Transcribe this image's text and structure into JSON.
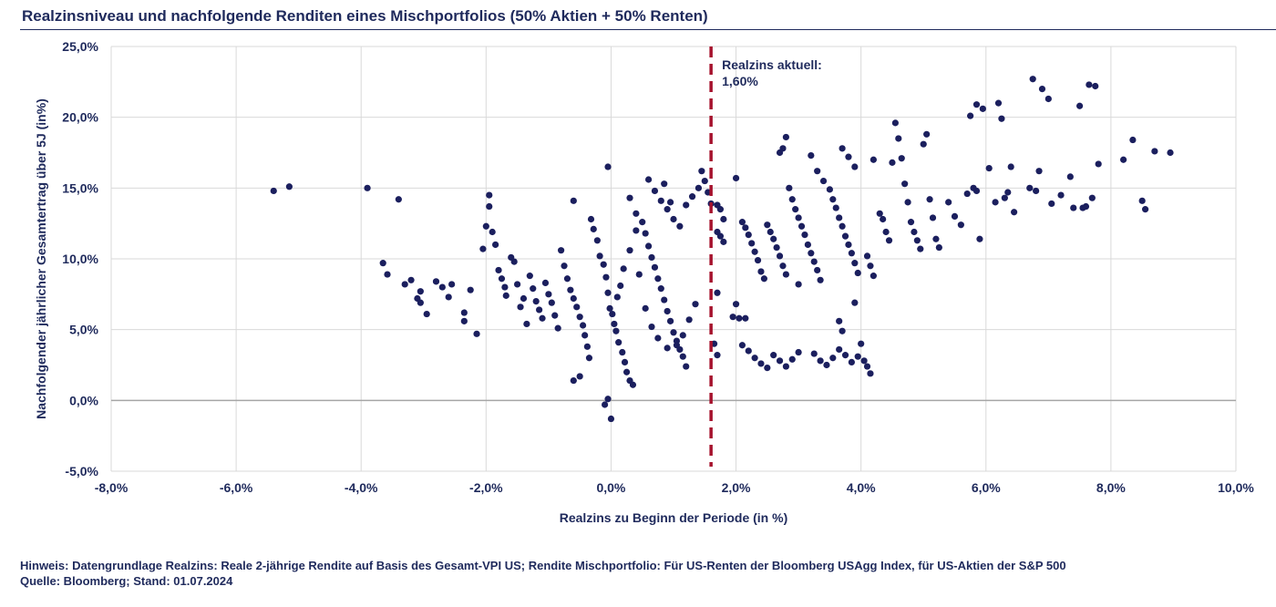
{
  "title": "Realzinsniveau und nachfolgende Renditen eines Mischportfolios (50% Aktien + 50% Renten)",
  "footer": {
    "note": "Hinweis: Datengrundlage Realzins: Reale 2-jährige Rendite auf Basis des Gesamt-VPI US; Rendite Mischportfolio: Für US-Renten der Bloomberg USAgg Index, für US-Aktien der S&P 500",
    "source": "Quelle: Bloomberg; Stand: 01.07.2024"
  },
  "colors": {
    "points": "#1b1f5e",
    "axis_text": "#1f2a5c",
    "grid": "#d9d9d9",
    "marker_line": "#a6122d",
    "zero_line": "#a6a6a6"
  },
  "chart_data": {
    "type": "scatter",
    "title": "Realzinsniveau und nachfolgende Renditen eines Mischportfolios (50% Aktien + 50% Renten)",
    "xlabel": "Realzins zu Beginn der Periode (in %)",
    "ylabel": "Nachfolgender jährlicher Gesamtertrag über 5J (in%)",
    "xlim": [
      -8,
      10
    ],
    "ylim": [
      -5,
      25
    ],
    "x_ticks": [
      -8,
      -6,
      -4,
      -2,
      0,
      2,
      4,
      6,
      8,
      10
    ],
    "x_tick_labels": [
      "-8,0%",
      "-6,0%",
      "-4,0%",
      "-2,0%",
      "0,0%",
      "2,0%",
      "4,0%",
      "6,0%",
      "8,0%",
      "10,0%"
    ],
    "y_ticks": [
      -5,
      0,
      5,
      10,
      15,
      20,
      25
    ],
    "y_tick_labels": [
      "-5,0%",
      "0,0%",
      "5,0%",
      "10,0%",
      "15,0%",
      "20,0%",
      "25,0%"
    ],
    "grid": true,
    "annotation": {
      "x": 1.6,
      "label_line1": "Realzins aktuell:",
      "label_line2": "1,60%"
    },
    "points": [
      [
        -5.4,
        14.8
      ],
      [
        -5.15,
        15.1
      ],
      [
        -3.9,
        15.0
      ],
      [
        -3.4,
        14.2
      ],
      [
        -3.65,
        9.7
      ],
      [
        -3.58,
        8.9
      ],
      [
        -3.3,
        8.2
      ],
      [
        -3.2,
        8.5
      ],
      [
        -3.05,
        7.7
      ],
      [
        -3.1,
        7.2
      ],
      [
        -3.05,
        6.9
      ],
      [
        -2.95,
        6.1
      ],
      [
        -2.8,
        8.4
      ],
      [
        -2.7,
        8.0
      ],
      [
        -2.6,
        7.3
      ],
      [
        -2.55,
        8.2
      ],
      [
        -2.35,
        6.2
      ],
      [
        -2.35,
        5.6
      ],
      [
        -2.25,
        7.8
      ],
      [
        -2.15,
        4.7
      ],
      [
        -2.05,
        10.7
      ],
      [
        -2.0,
        12.3
      ],
      [
        -1.95,
        14.5
      ],
      [
        -1.95,
        13.7
      ],
      [
        -1.9,
        11.9
      ],
      [
        -1.85,
        11.0
      ],
      [
        -1.8,
        9.2
      ],
      [
        -1.75,
        8.6
      ],
      [
        -1.7,
        8.0
      ],
      [
        -1.68,
        7.4
      ],
      [
        -1.6,
        10.1
      ],
      [
        -1.55,
        9.8
      ],
      [
        -1.5,
        8.2
      ],
      [
        -1.45,
        6.6
      ],
      [
        -1.4,
        7.2
      ],
      [
        -1.35,
        5.4
      ],
      [
        -1.3,
        8.8
      ],
      [
        -1.25,
        7.9
      ],
      [
        -1.2,
        7.0
      ],
      [
        -1.15,
        6.4
      ],
      [
        -1.1,
        5.8
      ],
      [
        -1.05,
        8.3
      ],
      [
        -1.0,
        7.5
      ],
      [
        -0.95,
        6.9
      ],
      [
        -0.9,
        6.0
      ],
      [
        -0.85,
        5.1
      ],
      [
        -0.8,
        10.6
      ],
      [
        -0.75,
        9.5
      ],
      [
        -0.7,
        8.6
      ],
      [
        -0.65,
        7.8
      ],
      [
        -0.6,
        7.2
      ],
      [
        -0.55,
        6.6
      ],
      [
        -0.5,
        5.9
      ],
      [
        -0.45,
        5.3
      ],
      [
        -0.42,
        4.6
      ],
      [
        -0.38,
        3.8
      ],
      [
        -0.35,
        3.0
      ],
      [
        -0.32,
        12.8
      ],
      [
        -0.28,
        12.1
      ],
      [
        -0.22,
        11.3
      ],
      [
        -0.18,
        10.2
      ],
      [
        -0.12,
        9.6
      ],
      [
        -0.08,
        8.7
      ],
      [
        -0.05,
        7.6
      ],
      [
        -0.02,
        6.5
      ],
      [
        0.02,
        6.1
      ],
      [
        0.05,
        5.4
      ],
      [
        0.08,
        4.9
      ],
      [
        0.12,
        4.1
      ],
      [
        0.18,
        3.4
      ],
      [
        0.22,
        2.7
      ],
      [
        0.25,
        2.0
      ],
      [
        0.3,
        1.4
      ],
      [
        0.35,
        1.1
      ],
      [
        -0.1,
        -0.3
      ],
      [
        -0.05,
        0.1
      ],
      [
        0.0,
        -1.3
      ],
      [
        -0.6,
        1.4
      ],
      [
        -0.5,
        1.7
      ],
      [
        -0.6,
        14.1
      ],
      [
        -0.05,
        16.5
      ],
      [
        0.3,
        14.3
      ],
      [
        0.4,
        13.2
      ],
      [
        0.5,
        12.6
      ],
      [
        0.55,
        11.8
      ],
      [
        0.6,
        10.9
      ],
      [
        0.65,
        10.1
      ],
      [
        0.7,
        9.4
      ],
      [
        0.75,
        8.6
      ],
      [
        0.8,
        7.9
      ],
      [
        0.85,
        7.1
      ],
      [
        0.9,
        6.3
      ],
      [
        0.95,
        5.6
      ],
      [
        1.0,
        4.8
      ],
      [
        1.05,
        4.2
      ],
      [
        1.1,
        3.6
      ],
      [
        1.15,
        3.1
      ],
      [
        1.2,
        2.4
      ],
      [
        0.7,
        14.8
      ],
      [
        0.8,
        14.1
      ],
      [
        0.9,
        13.5
      ],
      [
        1.0,
        12.8
      ],
      [
        1.1,
        12.3
      ],
      [
        1.2,
        13.8
      ],
      [
        1.3,
        14.4
      ],
      [
        1.4,
        15.0
      ],
      [
        1.45,
        16.2
      ],
      [
        1.5,
        15.5
      ],
      [
        1.55,
        14.7
      ],
      [
        1.6,
        13.9
      ],
      [
        1.35,
        6.8
      ],
      [
        1.25,
        5.7
      ],
      [
        1.15,
        4.6
      ],
      [
        1.05,
        3.9
      ],
      [
        0.85,
        15.3
      ],
      [
        0.95,
        14.0
      ],
      [
        0.6,
        15.6
      ],
      [
        0.4,
        12.0
      ],
      [
        0.3,
        10.6
      ],
      [
        0.2,
        9.3
      ],
      [
        0.15,
        8.1
      ],
      [
        0.1,
        7.3
      ],
      [
        0.45,
        8.9
      ],
      [
        0.55,
        6.5
      ],
      [
        0.65,
        5.2
      ],
      [
        0.75,
        4.4
      ],
      [
        0.9,
        3.7
      ],
      [
        1.7,
        13.8
      ],
      [
        1.75,
        13.5
      ],
      [
        1.8,
        12.8
      ],
      [
        1.7,
        11.9
      ],
      [
        1.75,
        11.6
      ],
      [
        1.8,
        11.2
      ],
      [
        1.65,
        4.0
      ],
      [
        1.7,
        3.2
      ],
      [
        1.7,
        7.6
      ],
      [
        1.95,
        5.9
      ],
      [
        2.0,
        6.8
      ],
      [
        2.05,
        5.8
      ],
      [
        2.15,
        5.8
      ],
      [
        2.0,
        15.7
      ],
      [
        2.1,
        12.6
      ],
      [
        2.15,
        12.2
      ],
      [
        2.2,
        11.7
      ],
      [
        2.25,
        11.1
      ],
      [
        2.3,
        10.5
      ],
      [
        2.35,
        9.9
      ],
      [
        2.4,
        9.1
      ],
      [
        2.45,
        8.6
      ],
      [
        2.5,
        12.4
      ],
      [
        2.55,
        11.9
      ],
      [
        2.6,
        11.4
      ],
      [
        2.65,
        10.8
      ],
      [
        2.7,
        10.2
      ],
      [
        2.75,
        9.5
      ],
      [
        2.8,
        8.9
      ],
      [
        2.1,
        3.9
      ],
      [
        2.2,
        3.5
      ],
      [
        2.3,
        3.0
      ],
      [
        2.4,
        2.6
      ],
      [
        2.5,
        2.3
      ],
      [
        2.6,
        3.2
      ],
      [
        2.7,
        2.8
      ],
      [
        2.8,
        2.4
      ],
      [
        2.9,
        2.9
      ],
      [
        3.0,
        3.4
      ],
      [
        2.7,
        17.5
      ],
      [
        2.75,
        17.8
      ],
      [
        2.8,
        18.6
      ],
      [
        2.85,
        15.0
      ],
      [
        2.9,
        14.2
      ],
      [
        2.95,
        13.5
      ],
      [
        3.0,
        12.9
      ],
      [
        3.05,
        12.3
      ],
      [
        3.1,
        11.7
      ],
      [
        3.15,
        11.0
      ],
      [
        3.2,
        10.4
      ],
      [
        3.25,
        9.8
      ],
      [
        3.3,
        9.2
      ],
      [
        3.35,
        8.5
      ],
      [
        3.0,
        8.2
      ],
      [
        3.2,
        17.3
      ],
      [
        3.3,
        16.2
      ],
      [
        3.4,
        15.5
      ],
      [
        3.5,
        14.9
      ],
      [
        3.55,
        14.2
      ],
      [
        3.6,
        13.6
      ],
      [
        3.65,
        12.9
      ],
      [
        3.7,
        12.3
      ],
      [
        3.75,
        11.6
      ],
      [
        3.8,
        11.0
      ],
      [
        3.85,
        10.4
      ],
      [
        3.9,
        9.7
      ],
      [
        3.95,
        9.0
      ],
      [
        3.7,
        17.8
      ],
      [
        3.8,
        17.2
      ],
      [
        3.9,
        16.5
      ],
      [
        3.25,
        3.3
      ],
      [
        3.35,
        2.8
      ],
      [
        3.45,
        2.5
      ],
      [
        3.55,
        3.0
      ],
      [
        3.65,
        3.6
      ],
      [
        3.75,
        3.2
      ],
      [
        3.85,
        2.7
      ],
      [
        3.95,
        3.1
      ],
      [
        4.0,
        4.0
      ],
      [
        4.05,
        2.8
      ],
      [
        4.1,
        2.4
      ],
      [
        4.15,
        1.9
      ],
      [
        3.65,
        5.6
      ],
      [
        3.7,
        4.9
      ],
      [
        4.2,
        17.0
      ],
      [
        4.3,
        13.2
      ],
      [
        4.35,
        12.8
      ],
      [
        4.4,
        11.9
      ],
      [
        4.45,
        11.3
      ],
      [
        4.5,
        16.8
      ],
      [
        4.55,
        19.6
      ],
      [
        4.6,
        18.5
      ],
      [
        4.65,
        17.1
      ],
      [
        4.7,
        15.3
      ],
      [
        4.75,
        14.0
      ],
      [
        4.8,
        12.6
      ],
      [
        4.85,
        11.9
      ],
      [
        4.9,
        11.3
      ],
      [
        4.95,
        10.7
      ],
      [
        5.0,
        18.1
      ],
      [
        5.05,
        18.8
      ],
      [
        5.1,
        14.2
      ],
      [
        5.15,
        12.9
      ],
      [
        5.2,
        11.4
      ],
      [
        5.25,
        10.8
      ],
      [
        4.1,
        10.2
      ],
      [
        4.15,
        9.5
      ],
      [
        4.2,
        8.8
      ],
      [
        3.9,
        6.9
      ],
      [
        5.4,
        14.0
      ],
      [
        5.5,
        13.0
      ],
      [
        5.6,
        12.4
      ],
      [
        5.7,
        14.6
      ],
      [
        5.8,
        15.0
      ],
      [
        5.85,
        14.8
      ],
      [
        5.9,
        11.4
      ],
      [
        5.75,
        20.1
      ],
      [
        5.85,
        20.9
      ],
      [
        5.95,
        20.6
      ],
      [
        6.05,
        16.4
      ],
      [
        6.15,
        14.0
      ],
      [
        6.2,
        21.0
      ],
      [
        6.25,
        19.9
      ],
      [
        6.3,
        14.3
      ],
      [
        6.35,
        14.7
      ],
      [
        6.4,
        16.5
      ],
      [
        6.45,
        13.3
      ],
      [
        6.7,
        15.0
      ],
      [
        6.75,
        22.7
      ],
      [
        6.8,
        14.8
      ],
      [
        6.85,
        16.2
      ],
      [
        6.9,
        22.0
      ],
      [
        7.0,
        21.3
      ],
      [
        7.05,
        13.9
      ],
      [
        7.2,
        14.5
      ],
      [
        7.35,
        15.8
      ],
      [
        7.4,
        13.6
      ],
      [
        7.5,
        20.8
      ],
      [
        7.55,
        13.6
      ],
      [
        7.6,
        13.7
      ],
      [
        7.65,
        22.3
      ],
      [
        7.7,
        14.3
      ],
      [
        7.75,
        22.2
      ],
      [
        7.8,
        16.7
      ],
      [
        8.2,
        17.0
      ],
      [
        8.35,
        18.4
      ],
      [
        8.5,
        14.1
      ],
      [
        8.55,
        13.5
      ],
      [
        8.7,
        17.6
      ],
      [
        8.95,
        17.5
      ]
    ]
  }
}
